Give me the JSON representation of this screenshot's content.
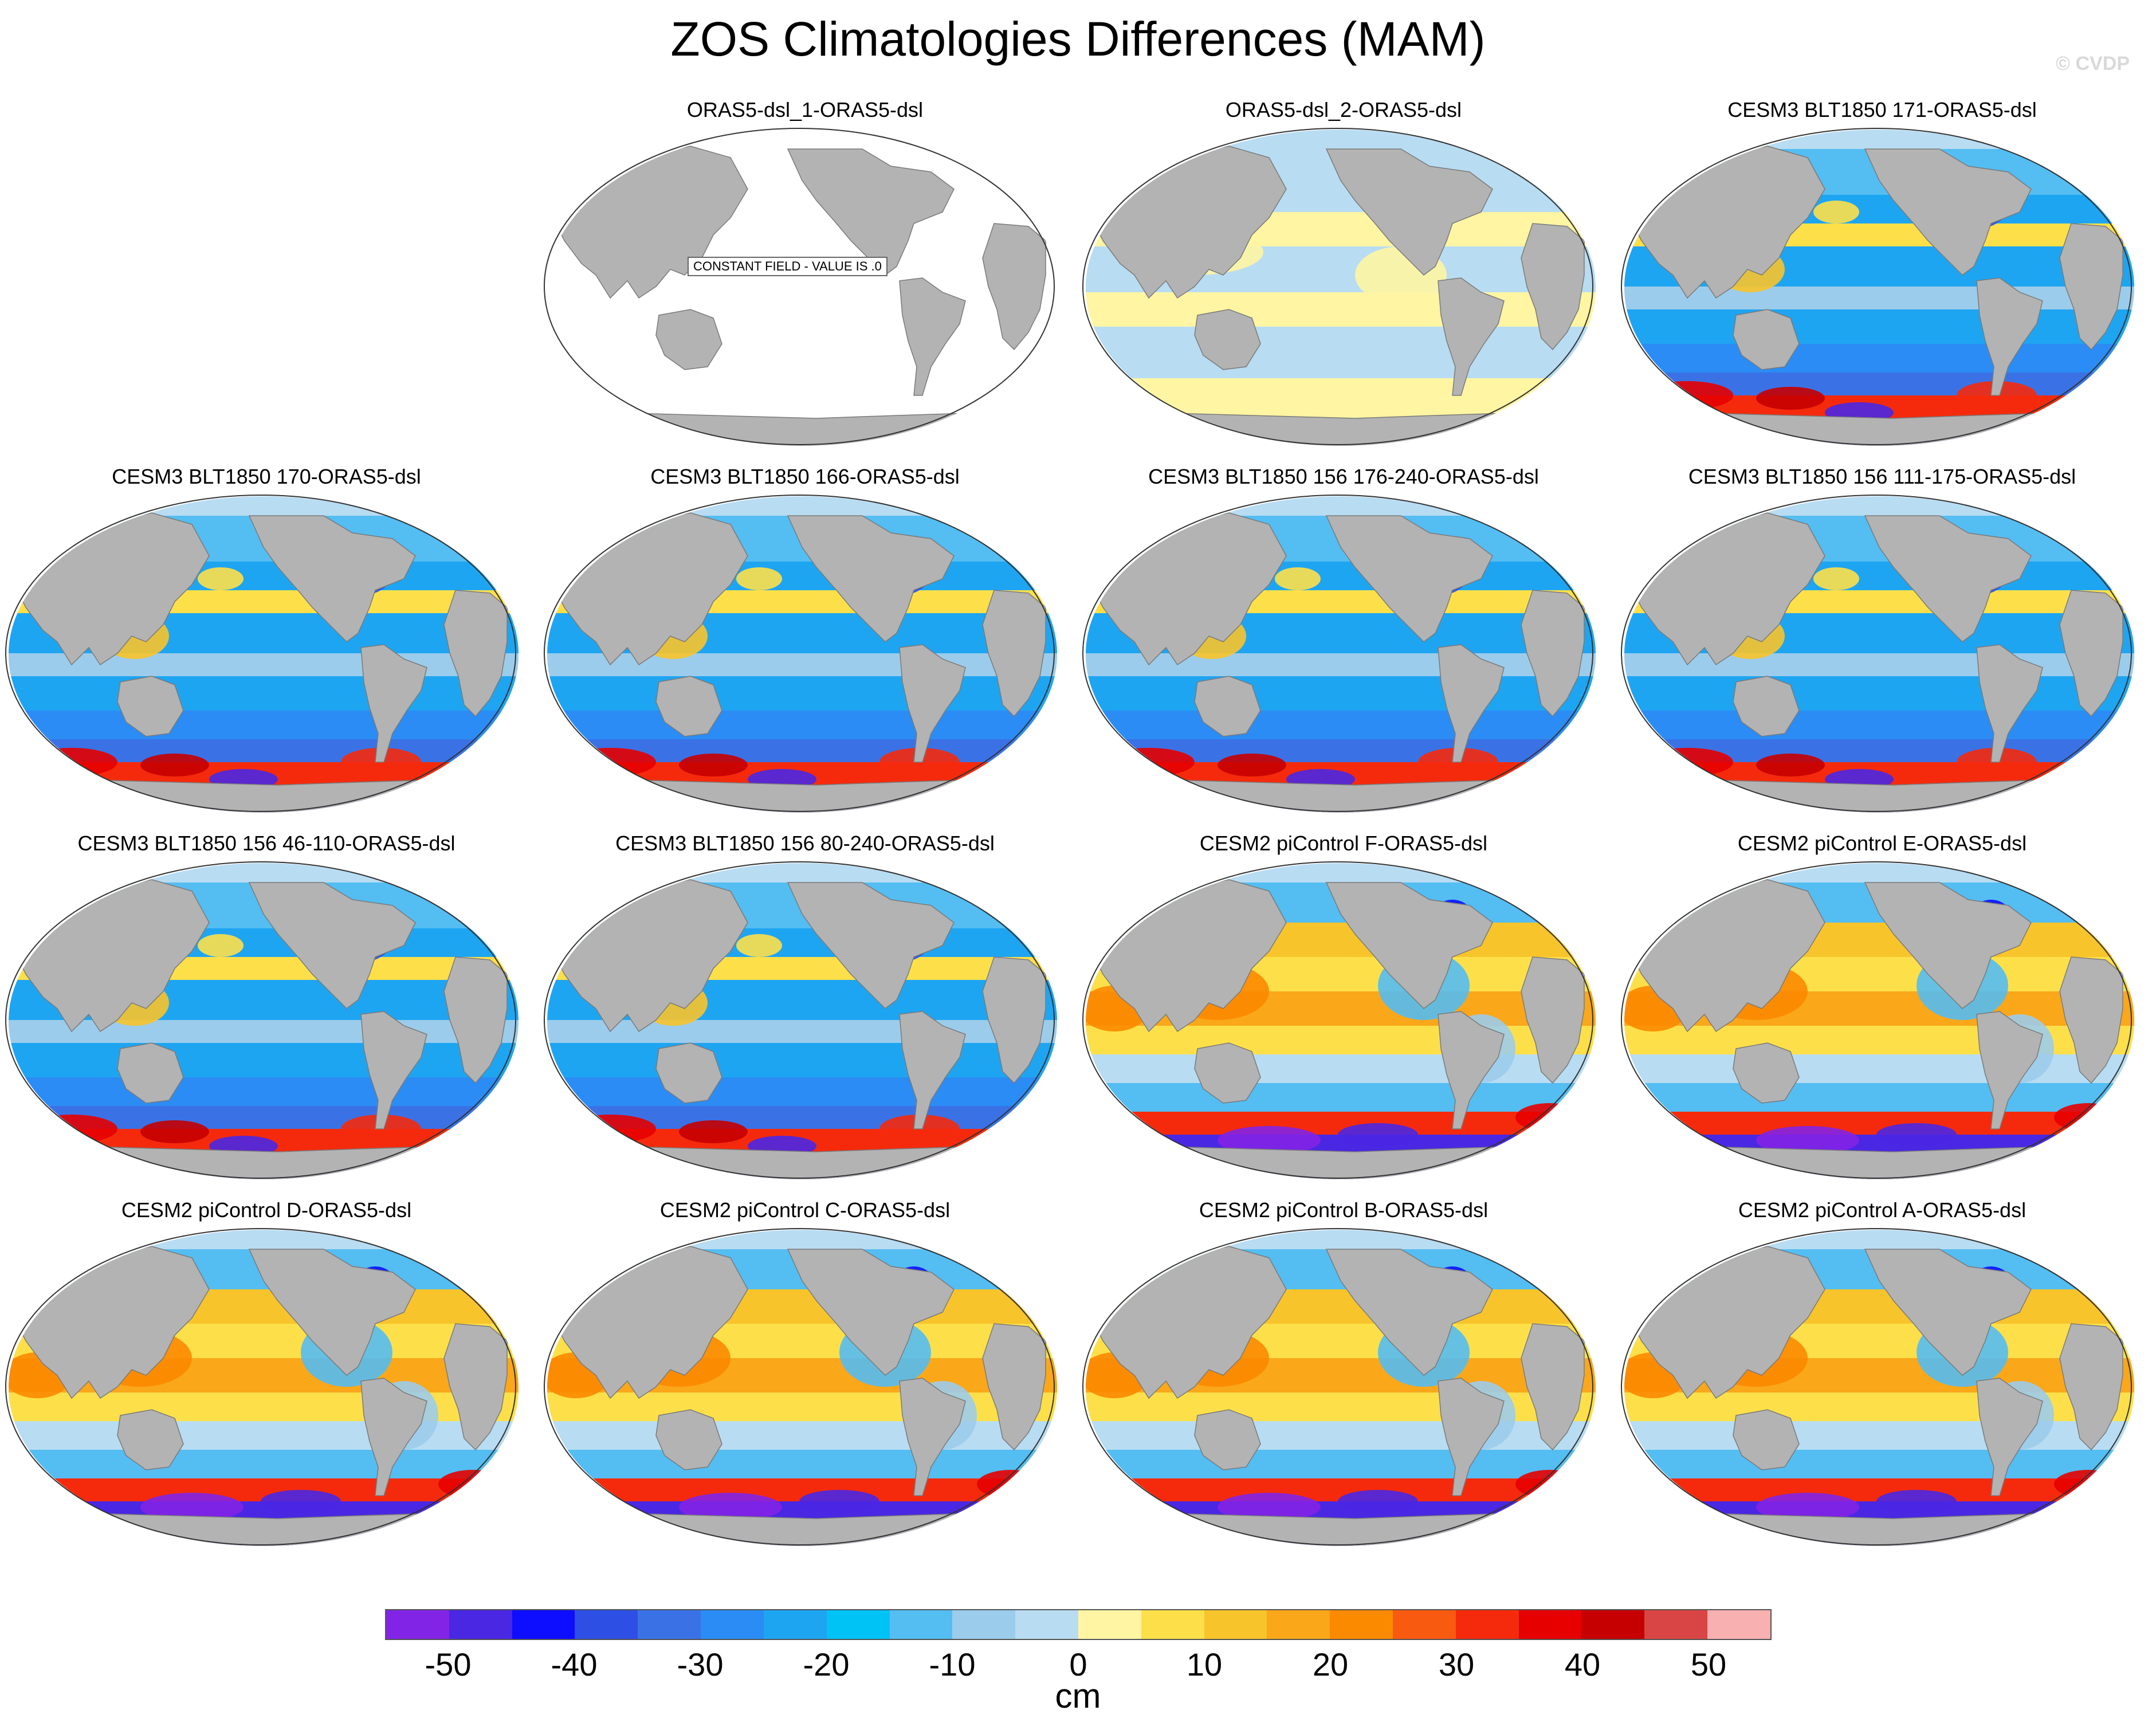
{
  "title": "ZOS Climatologies Differences (MAM)",
  "watermark": "© CVDP",
  "colors": {
    "ocean_background": "#ffffff",
    "land": "#b3b3b3",
    "coast": "#7a7a7a"
  },
  "panels": [
    {
      "title": "ORAS5-dsl_1-ORAS5-dsl",
      "pattern": "constant",
      "note": "CONSTANT FIELD - VALUE IS .0"
    },
    {
      "title": "ORAS5-dsl_2-ORAS5-dsl",
      "pattern": "near_zero"
    },
    {
      "title": "CESM3 BLT1850 171-ORAS5-dsl",
      "pattern": "cesm3"
    },
    {
      "title": "CESM3 BLT1850 170-ORAS5-dsl",
      "pattern": "cesm3"
    },
    {
      "title": "CESM3 BLT1850 166-ORAS5-dsl",
      "pattern": "cesm3"
    },
    {
      "title": "CESM3 BLT1850 156 176-240-ORAS5-dsl",
      "pattern": "cesm3"
    },
    {
      "title": "CESM3 BLT1850 156 111-175-ORAS5-dsl",
      "pattern": "cesm3"
    },
    {
      "title": "CESM3 BLT1850 156 46-110-ORAS5-dsl",
      "pattern": "cesm3"
    },
    {
      "title": "CESM3 BLT1850 156 80-240-ORAS5-dsl",
      "pattern": "cesm3"
    },
    {
      "title": "CESM2 piControl F-ORAS5-dsl",
      "pattern": "cesm2"
    },
    {
      "title": "CESM2 piControl E-ORAS5-dsl",
      "pattern": "cesm2"
    },
    {
      "title": "CESM2 piControl D-ORAS5-dsl",
      "pattern": "cesm2"
    },
    {
      "title": "CESM2 piControl C-ORAS5-dsl",
      "pattern": "cesm2"
    },
    {
      "title": "CESM2 piControl B-ORAS5-dsl",
      "pattern": "cesm2"
    },
    {
      "title": "CESM2 piControl A-ORAS5-dsl",
      "pattern": "cesm2"
    }
  ],
  "colorbar": {
    "units": "cm",
    "tick_labels": [
      "-50",
      "-40",
      "-30",
      "-20",
      "-10",
      "0",
      "10",
      "20",
      "30",
      "40",
      "50"
    ],
    "colors": [
      "#8224e6",
      "#4a27e3",
      "#0d0dff",
      "#2e4fe3",
      "#3a72e6",
      "#2b8cf5",
      "#1ea5f2",
      "#00c3f5",
      "#54bdf2",
      "#9ccceb",
      "#b8dcf2",
      "#fff5a3",
      "#fde049",
      "#f8c42b",
      "#faa71a",
      "#fb8a00",
      "#f85a10",
      "#f52a0c",
      "#e60000",
      "#c60000",
      "#d94545",
      "#f8b0b0"
    ]
  }
}
